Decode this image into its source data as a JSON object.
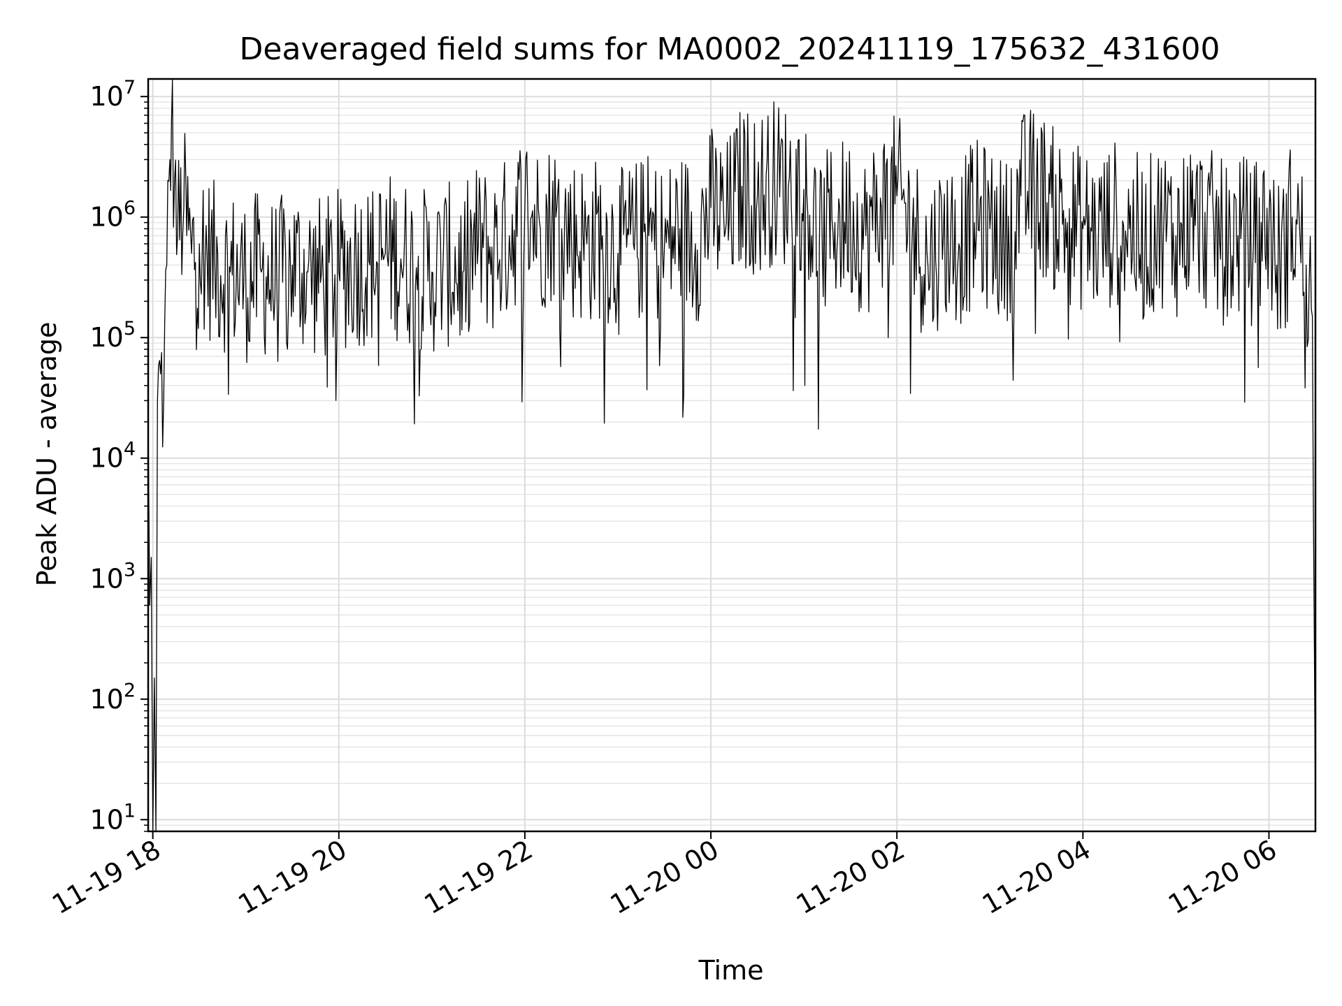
{
  "chart_data": {
    "type": "line",
    "title": "Deaveraged field sums for MA0002_20241119_175632_431600",
    "xlabel": "Time",
    "ylabel": "Peak ADU - average",
    "x_range": [
      "2024-11-19 17:57",
      "2024-11-20 06:30"
    ],
    "y_scale": "log",
    "ylim": [
      8,
      14000000
    ],
    "grid": true,
    "legend": "none",
    "line_color": "#000000",
    "x_ticks": [
      {
        "value": "2024-11-19 18:00",
        "label": "11-19 18"
      },
      {
        "value": "2024-11-19 20:00",
        "label": "11-19 20"
      },
      {
        "value": "2024-11-19 22:00",
        "label": "11-19 22"
      },
      {
        "value": "2024-11-20 00:00",
        "label": "11-20 00"
      },
      {
        "value": "2024-11-20 02:00",
        "label": "11-20 02"
      },
      {
        "value": "2024-11-20 04:00",
        "label": "11-20 04"
      },
      {
        "value": "2024-11-20 06:00",
        "label": "11-20 06"
      }
    ],
    "y_ticks": [
      {
        "value": 10,
        "base": "10",
        "exp": "1"
      },
      {
        "value": 100,
        "base": "10",
        "exp": "2"
      },
      {
        "value": 1000,
        "base": "10",
        "exp": "3"
      },
      {
        "value": 10000,
        "base": "10",
        "exp": "4"
      },
      {
        "value": 100000,
        "base": "10",
        "exp": "5"
      },
      {
        "value": 1000000,
        "base": "10",
        "exp": "6"
      },
      {
        "value": 10000000,
        "base": "10",
        "exp": "7"
      }
    ],
    "series": [
      {
        "x": [
          "2024-11-19 17:57",
          "2024-11-19 17:58",
          "2024-11-19 17:59",
          "2024-11-19 18:00",
          "2024-11-19 18:01",
          "2024-11-19 18:02",
          "2024-11-19 18:03",
          "2024-11-19 18:05",
          "2024-11-19 18:07",
          "2024-11-19 18:09",
          "2024-11-19 18:11",
          "2024-11-19 18:12",
          "2024-11-19 18:14",
          "2024-11-19 18:16",
          "2024-11-19 18:20",
          "2024-11-19 18:25",
          "2024-11-19 18:30",
          "2024-11-19 18:40",
          "2024-11-19 18:50",
          "2024-11-19 19:00",
          "2024-11-19 19:10",
          "2024-11-19 19:20",
          "2024-11-19 19:30",
          "2024-11-19 19:40",
          "2024-11-19 19:50",
          "2024-11-19 20:00",
          "2024-11-19 20:10",
          "2024-11-19 20:20",
          "2024-11-19 20:30",
          "2024-11-19 20:40",
          "2024-11-19 20:50",
          "2024-11-19 21:00",
          "2024-11-19 21:10",
          "2024-11-19 21:20",
          "2024-11-19 21:30",
          "2024-11-19 21:40",
          "2024-11-19 21:50",
          "2024-11-19 22:00",
          "2024-11-19 22:10",
          "2024-11-19 22:20",
          "2024-11-19 22:30",
          "2024-11-19 22:40",
          "2024-11-19 22:50",
          "2024-11-19 23:00",
          "2024-11-19 23:10",
          "2024-11-19 23:20",
          "2024-11-19 23:30",
          "2024-11-19 23:40",
          "2024-11-19 23:50",
          "2024-11-20 00:00",
          "2024-11-20 00:10",
          "2024-11-20 00:20",
          "2024-11-20 00:30",
          "2024-11-20 00:40",
          "2024-11-20 00:50",
          "2024-11-20 01:00",
          "2024-11-20 01:10",
          "2024-11-20 01:20",
          "2024-11-20 01:30",
          "2024-11-20 01:40",
          "2024-11-20 01:50",
          "2024-11-20 02:00",
          "2024-11-20 02:10",
          "2024-11-20 02:20",
          "2024-11-20 02:30",
          "2024-11-20 02:40",
          "2024-11-20 02:50",
          "2024-11-20 03:00",
          "2024-11-20 03:10",
          "2024-11-20 03:20",
          "2024-11-20 03:30",
          "2024-11-20 03:40",
          "2024-11-20 03:50",
          "2024-11-20 04:00",
          "2024-11-20 04:10",
          "2024-11-20 04:20",
          "2024-11-20 04:30",
          "2024-11-20 04:40",
          "2024-11-20 04:50",
          "2024-11-20 05:00",
          "2024-11-20 05:10",
          "2024-11-20 05:20",
          "2024-11-20 05:30",
          "2024-11-20 05:40",
          "2024-11-20 05:50",
          "2024-11-20 06:00",
          "2024-11-20 06:05",
          "2024-11-20 06:10",
          "2024-11-20 06:15",
          "2024-11-20 06:20",
          "2024-11-20 06:24",
          "2024-11-20 06:26",
          "2024-11-20 06:28",
          "2024-11-20 06:30"
        ],
        "y": [
          20000,
          600,
          1500,
          8,
          150,
          8,
          30000,
          50000,
          30000,
          400000,
          3000000,
          6000000,
          2000000,
          700000,
          1200000,
          500000,
          600000,
          400000,
          350000,
          300000,
          350000,
          280000,
          400000,
          350000,
          300000,
          350000,
          420000,
          400000,
          500000,
          450000,
          380000,
          350000,
          400000,
          350000,
          600000,
          500000,
          700000,
          1200000,
          800000,
          1000000,
          700000,
          600000,
          700000,
          500000,
          600000,
          700000,
          550000,
          800000,
          600000,
          1200000,
          900000,
          1800000,
          1500000,
          2000000,
          1800000,
          1700000,
          600000,
          900000,
          1000000,
          700000,
          1200000,
          1500000,
          800000,
          400000,
          700000,
          600000,
          900000,
          800000,
          600000,
          1500000,
          1800000,
          1200000,
          900000,
          800000,
          700000,
          900000,
          800000,
          600000,
          900000,
          700000,
          1000000,
          800000,
          600000,
          700000,
          600000,
          900000,
          400000,
          500000,
          1000000,
          700000,
          400000,
          300000,
          150000,
          10
        ]
      }
    ]
  }
}
